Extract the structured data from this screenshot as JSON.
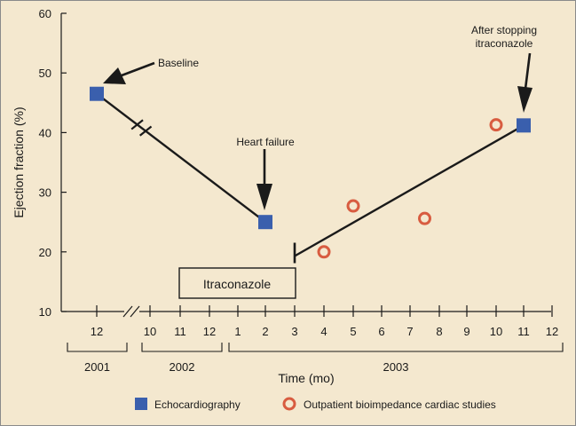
{
  "chart_data": {
    "type": "scatter",
    "xlabel": "Time (mo)",
    "ylabel": "Ejection fraction (%)",
    "ylim": [
      10,
      60
    ],
    "y_ticks": [
      10,
      20,
      30,
      40,
      50,
      60
    ],
    "grid": false,
    "x_ticks": [
      {
        "i": 0,
        "label": "12"
      },
      {
        "i": 1,
        "label": "10"
      },
      {
        "i": 2,
        "label": "11"
      },
      {
        "i": 3,
        "label": "12"
      },
      {
        "i": 4,
        "label": "1"
      },
      {
        "i": 5,
        "label": "2"
      },
      {
        "i": 6,
        "label": "3"
      },
      {
        "i": 7,
        "label": "4"
      },
      {
        "i": 8,
        "label": "5"
      },
      {
        "i": 9,
        "label": "6"
      },
      {
        "i": 10,
        "label": "7"
      },
      {
        "i": 11,
        "label": "8"
      },
      {
        "i": 12,
        "label": "9"
      },
      {
        "i": 13,
        "label": "10"
      },
      {
        "i": 14,
        "label": "11"
      },
      {
        "i": 15,
        "label": "12"
      }
    ],
    "years": [
      {
        "label": "2001",
        "from": 0,
        "to": 0
      },
      {
        "label": "2002",
        "from": 1,
        "to": 3
      },
      {
        "label": "2003",
        "from": 4,
        "to": 15
      }
    ],
    "series": [
      {
        "name": "Echocardiography",
        "marker": "square",
        "color": "#3a5fad",
        "points": [
          {
            "x": "2001-12",
            "y": 46.5
          },
          {
            "x": "2003-02",
            "y": 25
          },
          {
            "x": "2003-11",
            "y": 41.2
          }
        ]
      },
      {
        "name": "Outpatient bioimpedance cardiac studies",
        "marker": "open-circle",
        "color": "#d85c40",
        "points": [
          {
            "x": "2003-04",
            "y": 20
          },
          {
            "x": "2003-05",
            "y": 27.7
          },
          {
            "x": "2003-07.5",
            "y": 25.6
          },
          {
            "x": "2003-10",
            "y": 41.3
          }
        ]
      }
    ],
    "annotations": [
      {
        "text": "Baseline"
      },
      {
        "text": "Heart failure"
      },
      {
        "text": "After stopping"
      },
      {
        "text": "itraconazole"
      }
    ],
    "treatment_box": {
      "label": "Itraconazole"
    },
    "legend": {
      "placement": "bottom"
    }
  },
  "colors": {
    "background": "#f4e8cf",
    "echo": "#3a5fad",
    "bioimpedance": "#d85c40",
    "ink": "#1a1a1a"
  }
}
